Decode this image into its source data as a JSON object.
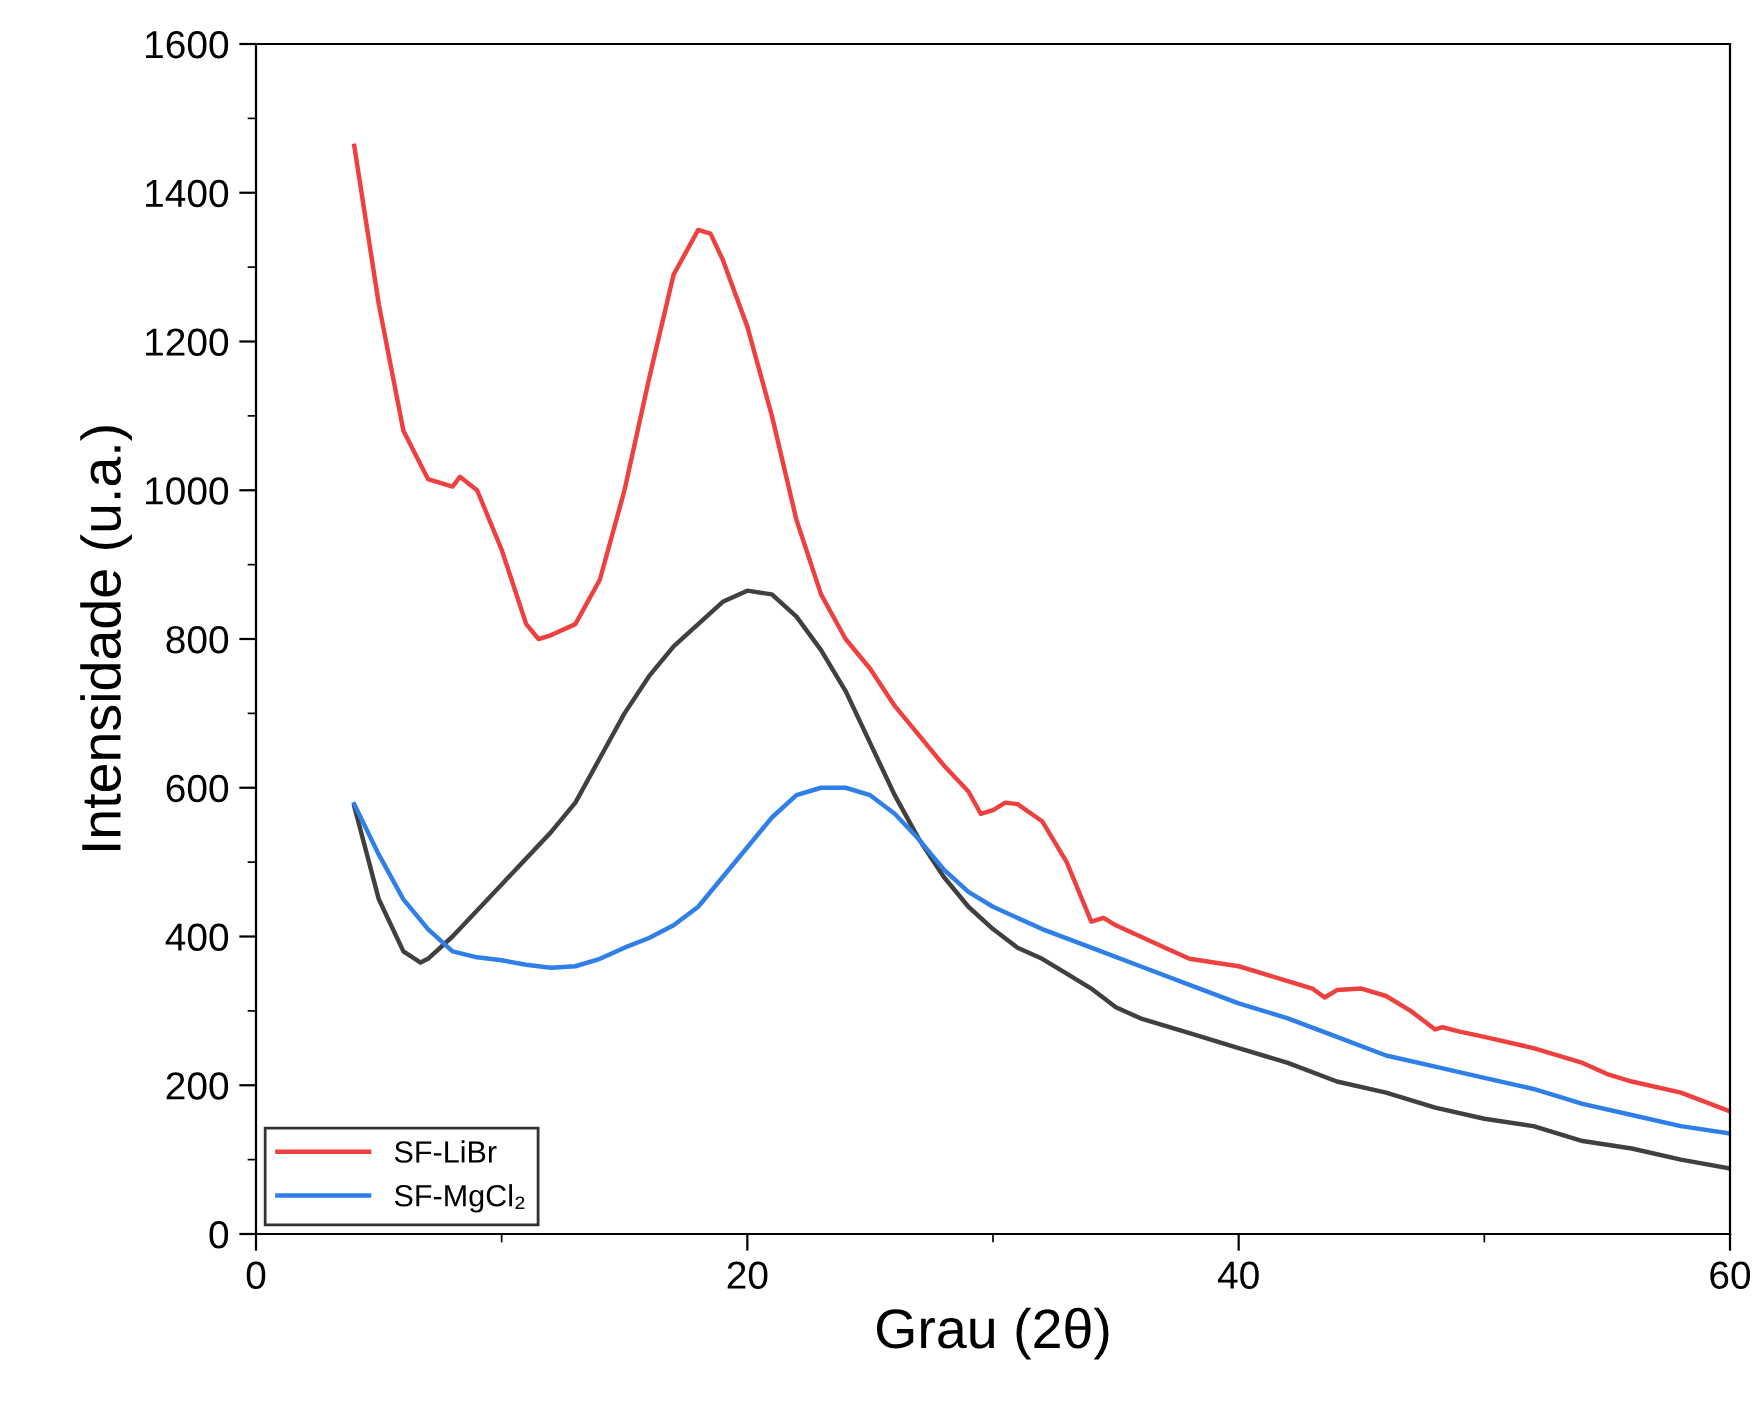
{
  "chart_data": {
    "type": "line",
    "xlabel": "Grau (2θ)",
    "ylabel": "Intensidade (u.a.)",
    "xlim": [
      0,
      60
    ],
    "ylim": [
      0,
      1600
    ],
    "xticks": [
      0,
      20,
      40,
      60
    ],
    "yticks": [
      0,
      200,
      400,
      600,
      800,
      1000,
      1200,
      1400,
      1600
    ],
    "grid": false,
    "legend": "bottom left",
    "marker": "none",
    "line_style": "solid",
    "series": [
      {
        "color": "#404040",
        "x": [
          4,
          5,
          6,
          6.7,
          7,
          8,
          10,
          12,
          13,
          14,
          15,
          16,
          17,
          18,
          19,
          20,
          21,
          22,
          23,
          24,
          25,
          26,
          27,
          28,
          29,
          30,
          31,
          32,
          33,
          34,
          35,
          36,
          38,
          40,
          42,
          44,
          46,
          48,
          50,
          52,
          54,
          56,
          58,
          60
        ],
        "values": [
          575,
          450,
          380,
          365,
          370,
          400,
          470,
          540,
          580,
          640,
          700,
          750,
          790,
          820,
          850,
          865,
          860,
          830,
          785,
          730,
          660,
          590,
          530,
          480,
          440,
          410,
          385,
          370,
          350,
          330,
          305,
          290,
          270,
          250,
          230,
          205,
          190,
          170,
          155,
          145,
          125,
          115,
          100,
          88
        ]
      },
      {
        "name": "SF-LiBr",
        "color": "#ef4040",
        "x": [
          4,
          5,
          6,
          7,
          8,
          8.3,
          9,
          10,
          11,
          11.5,
          12,
          13,
          14,
          15,
          16,
          17,
          18,
          18.5,
          19,
          20,
          21,
          22,
          23,
          24,
          25,
          26,
          27,
          28,
          29,
          29.5,
          30,
          30.5,
          31,
          32,
          33,
          34,
          34.5,
          35,
          36,
          37,
          38,
          39,
          40,
          41,
          42,
          43,
          43.5,
          44,
          45,
          46,
          47,
          48,
          48.3,
          49,
          50,
          52,
          54,
          55,
          56,
          58,
          60
        ],
        "values": [
          1463,
          1250,
          1080,
          1015,
          1005,
          1018,
          1000,
          920,
          820,
          800,
          805,
          820,
          880,
          1000,
          1150,
          1290,
          1350,
          1345,
          1310,
          1220,
          1100,
          960,
          860,
          800,
          760,
          710,
          670,
          630,
          595,
          565,
          570,
          580,
          578,
          555,
          500,
          420,
          425,
          415,
          400,
          385,
          370,
          365,
          360,
          350,
          340,
          330,
          318,
          328,
          330,
          320,
          300,
          275,
          278,
          272,
          265,
          250,
          230,
          215,
          205,
          190,
          165
        ]
      },
      {
        "name": "SF-MgCl₂",
        "color": "#2f7fe8",
        "x": [
          4,
          5,
          6,
          7,
          8,
          9,
          10,
          11,
          12,
          13,
          14,
          15,
          16,
          17,
          18,
          19,
          20,
          21,
          22,
          23,
          24,
          25,
          26,
          27,
          28,
          29,
          30,
          32,
          34,
          36,
          38,
          40,
          42,
          44,
          46,
          48,
          50,
          52,
          54,
          56,
          58,
          60
        ],
        "values": [
          578,
          510,
          450,
          410,
          380,
          372,
          368,
          362,
          358,
          360,
          370,
          385,
          398,
          415,
          440,
          480,
          520,
          560,
          590,
          600,
          600,
          590,
          565,
          530,
          490,
          460,
          440,
          410,
          385,
          360,
          335,
          310,
          290,
          265,
          240,
          225,
          210,
          195,
          175,
          160,
          145,
          135
        ]
      }
    ]
  }
}
